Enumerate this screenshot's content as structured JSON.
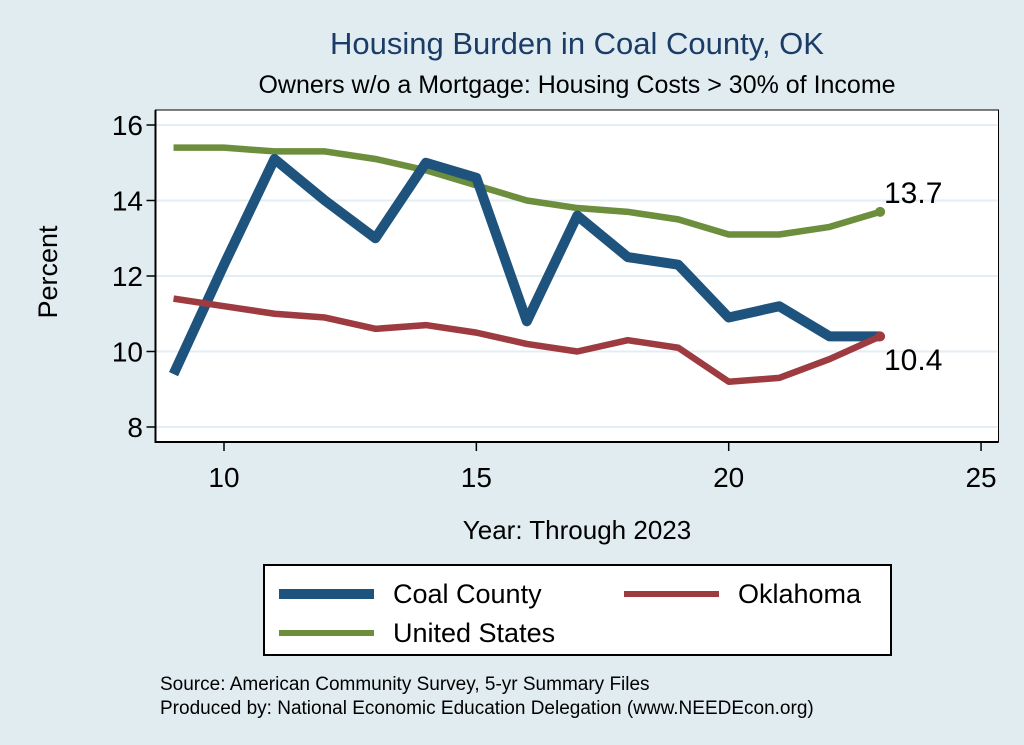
{
  "page": {
    "background": "#e1ecf1",
    "plot_background": "#ffffff",
    "gridline_color": "#e2edf4",
    "title_color": "#1b3c66"
  },
  "footer": {
    "source": "Source: American Community Survey, 5-yr Summary Files",
    "produced_by": "Produced by: National Economic Education Delegation (www.NEEDEcon.org)"
  },
  "chart_data": {
    "type": "line",
    "title": "Housing Burden in Coal County, OK",
    "subtitle": "Owners w/o a Mortgage: Housing Costs > 30% of Income",
    "xlabel": "Year: Through 2023",
    "ylabel": "Percent",
    "x": [
      9,
      10,
      11,
      12,
      13,
      14,
      15,
      16,
      17,
      18,
      19,
      20,
      21,
      22,
      23
    ],
    "xticks": [
      10,
      15,
      20,
      25
    ],
    "yticks": [
      8,
      10,
      12,
      14,
      16
    ],
    "xlim": [
      8.64,
      25.35
    ],
    "ylim": [
      7.6,
      16.4
    ],
    "grid": true,
    "legend_position": "bottom",
    "series": [
      {
        "name": "Coal County",
        "color": "#1e537e",
        "line_width": 10,
        "values": [
          9.4,
          12.3,
          15.1,
          14.0,
          13.0,
          15.0,
          14.6,
          10.8,
          13.6,
          12.5,
          12.3,
          10.9,
          11.2,
          10.4,
          10.4
        ],
        "end_dot": false,
        "end_label": ""
      },
      {
        "name": "Oklahoma",
        "color": "#9d3b40",
        "line_width": 6.5,
        "values": [
          11.4,
          11.2,
          11.0,
          10.9,
          10.6,
          10.7,
          10.5,
          10.2,
          10.0,
          10.3,
          10.1,
          9.2,
          9.3,
          9.8,
          10.4
        ],
        "end_dot": true,
        "end_label": "10.4"
      },
      {
        "name": "United States",
        "color": "#6d8e3c",
        "line_width": 6.5,
        "values": [
          15.4,
          15.4,
          15.3,
          15.3,
          15.1,
          14.8,
          14.4,
          14.0,
          13.8,
          13.7,
          13.5,
          13.1,
          13.1,
          13.3,
          13.7
        ],
        "end_dot": true,
        "end_label": "13.7"
      }
    ],
    "draw_order": [
      2,
      0,
      1
    ]
  }
}
